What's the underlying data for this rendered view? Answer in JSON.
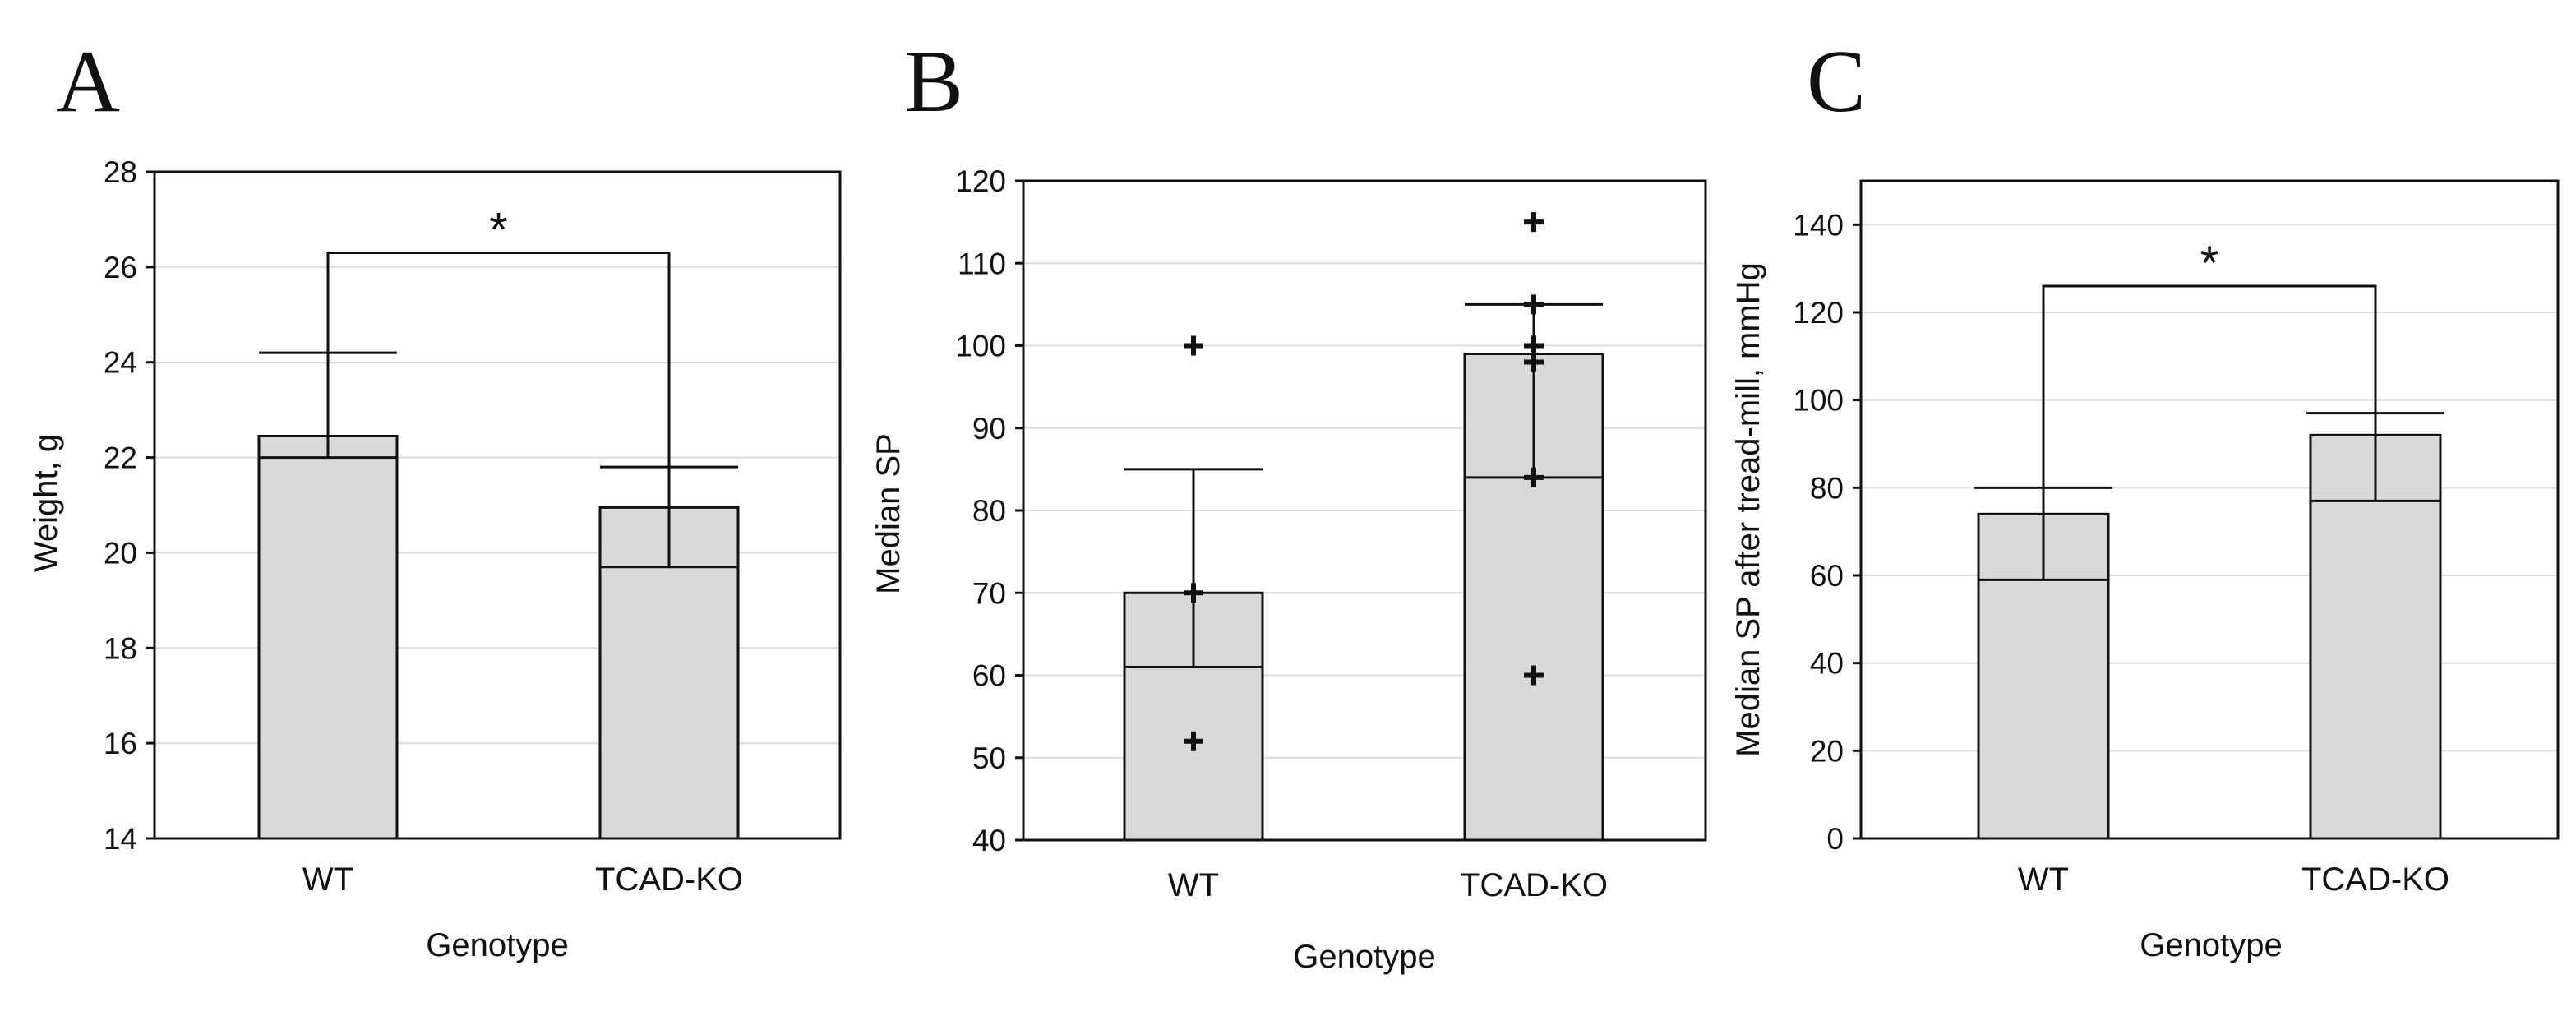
{
  "chart_data": [
    {
      "panel": "A",
      "type": "bar",
      "xlabel": "Genotype",
      "ylabel": "Weight, g",
      "ylim": [
        14,
        28
      ],
      "yticks": [
        14,
        16,
        18,
        20,
        22,
        24,
        26,
        28
      ],
      "grid": true,
      "categories": [
        "WT",
        "TCAD-KO"
      ],
      "values": [
        22.45,
        20.95
      ],
      "medians": [
        22.0,
        19.7
      ],
      "error_upper": [
        24.2,
        21.8
      ],
      "points": [
        [],
        []
      ],
      "significance": {
        "label": "*",
        "between": [
          0,
          1
        ],
        "y": 26.3
      }
    },
    {
      "panel": "B",
      "type": "bar",
      "xlabel": "Genotype",
      "ylabel": "Median SP",
      "ylim": [
        40,
        120
      ],
      "yticks": [
        40,
        50,
        60,
        70,
        80,
        90,
        100,
        110,
        120
      ],
      "grid": true,
      "categories": [
        "WT",
        "TCAD-KO"
      ],
      "values": [
        70,
        99
      ],
      "medians": [
        61,
        84
      ],
      "error_upper": [
        85,
        105
      ],
      "points": [
        [
          100,
          70,
          52
        ],
        [
          115,
          105,
          100,
          98,
          84,
          60
        ]
      ],
      "significance": null
    },
    {
      "panel": "C",
      "type": "bar",
      "xlabel": "Genotype",
      "ylabel": "Median SP after tread-mill, mmHg",
      "ylim": [
        0,
        150
      ],
      "yticks": [
        0,
        20,
        40,
        60,
        80,
        100,
        120,
        140
      ],
      "grid": true,
      "categories": [
        "WT",
        "TCAD-KO"
      ],
      "values": [
        74,
        92
      ],
      "medians": [
        59,
        77
      ],
      "error_upper": [
        80,
        97
      ],
      "points": [
        [],
        []
      ],
      "significance": {
        "label": "*",
        "between": [
          0,
          1
        ],
        "y": 126
      }
    }
  ]
}
